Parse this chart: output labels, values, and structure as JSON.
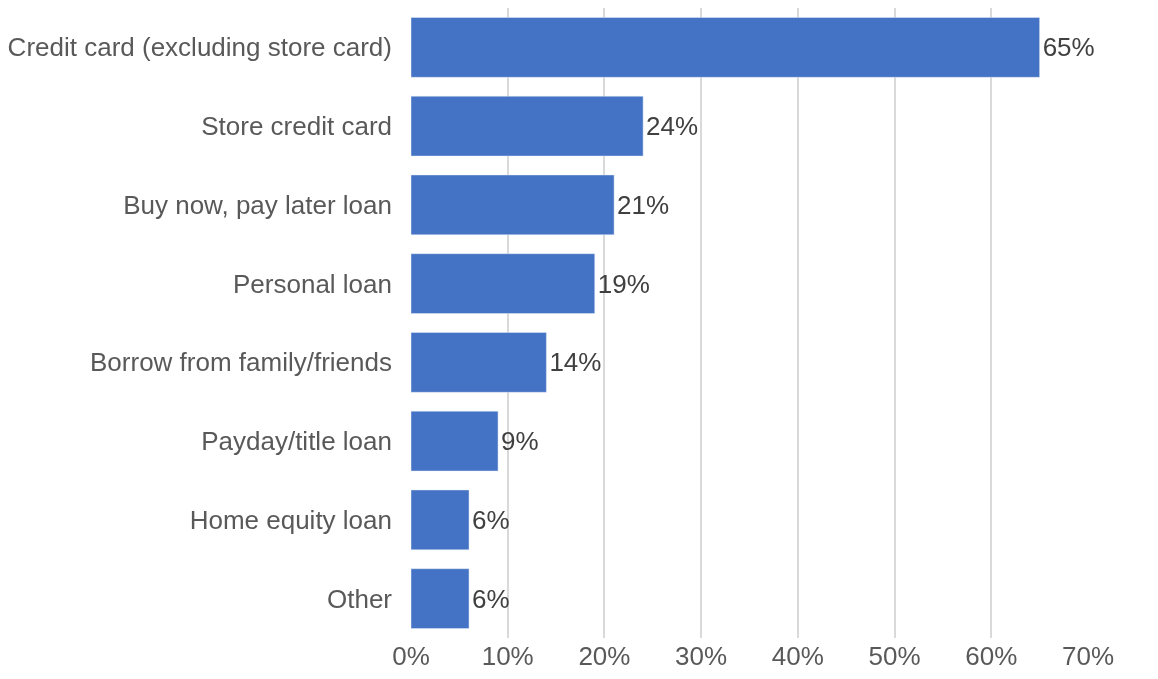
{
  "chart_data": {
    "type": "bar",
    "orientation": "horizontal",
    "categories": [
      "Credit card (excluding store card)",
      "Store credit card",
      "Buy now, pay later loan",
      "Personal loan",
      "Borrow from family/friends",
      "Payday/title loan",
      "Home equity loan",
      "Other"
    ],
    "values": [
      65,
      24,
      21,
      19,
      14,
      9,
      6,
      6
    ],
    "value_labels": [
      "65%",
      "24%",
      "21%",
      "19%",
      "14%",
      "9%",
      "6%",
      "6%"
    ],
    "color": "#4472c4",
    "xlim": [
      0,
      70
    ],
    "xticks": [
      {
        "value": 0,
        "label": "0%"
      },
      {
        "value": 10,
        "label": "10%"
      },
      {
        "value": 20,
        "label": "20%"
      },
      {
        "value": 30,
        "label": "30%"
      },
      {
        "value": 40,
        "label": "40%"
      },
      {
        "value": 50,
        "label": "50%"
      },
      {
        "value": 60,
        "label": "60%"
      },
      {
        "value": 70,
        "label": "70%"
      }
    ],
    "grid": "x",
    "legend": false
  }
}
